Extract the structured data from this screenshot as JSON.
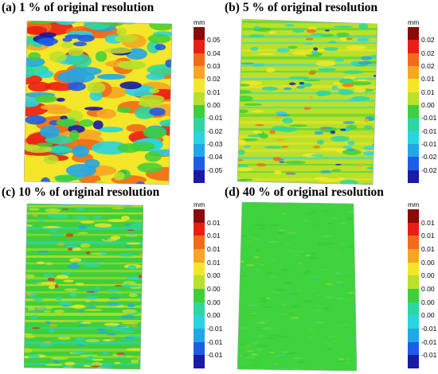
{
  "palette": [
    "#8b0a0a",
    "#ea1e14",
    "#f26a1a",
    "#f5a623",
    "#f4e628",
    "#b9e02a",
    "#3fcf3b",
    "#2ed6a1",
    "#2ad4de",
    "#23a6e6",
    "#1f5ce8",
    "#1a1aa4"
  ],
  "panels": [
    {
      "title": "(a) 1 % of original resolution",
      "unit": "mm",
      "ticks": [
        "0.05",
        "0.04",
        "0.03",
        "0.02",
        "0.01",
        "0.00",
        "-0.01",
        "-0.02",
        "-0.03",
        "-0.04",
        "-0.05"
      ],
      "level": "high-variation"
    },
    {
      "title": "(b) 5 % of original resolution",
      "unit": "mm",
      "ticks": [
        "0.02",
        "0.02",
        "0.02",
        "0.01",
        "0.01",
        "0.00",
        "-0.01",
        "-0.01",
        "-0.01",
        "-0.02",
        "-0.02"
      ],
      "level": "medium-variation"
    },
    {
      "title": "(c) 10 % of original resolution",
      "unit": "mm",
      "ticks": [
        "0.01",
        "0.01",
        "0.01",
        "0.01",
        "0.00",
        "0.00",
        "0.00",
        "0.00",
        "-0.01",
        "-0.01",
        "-0.01"
      ],
      "level": "low-variation"
    },
    {
      "title": "(d) 40 % of original resolution",
      "unit": "mm",
      "ticks": [
        "0.01",
        "0.01",
        "0.01",
        "0.00",
        "0.00",
        "0.00",
        "0.00",
        "0.00",
        "-0.01",
        "-0.01",
        "-0.01"
      ],
      "level": "minimal-variation"
    }
  ]
}
